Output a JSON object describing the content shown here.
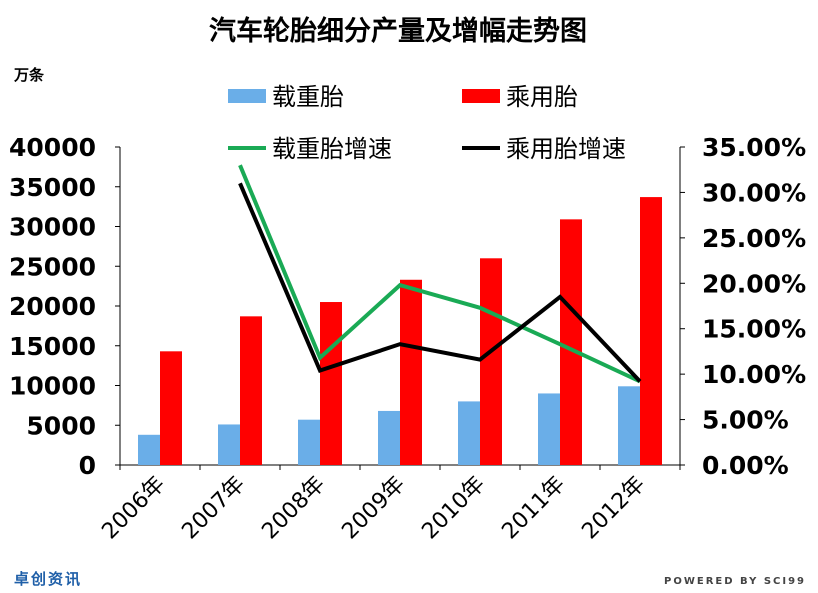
{
  "chart_data": {
    "type": "bar",
    "title": "汽车轮胎细分产量及增幅走势图",
    "ylabel_left": "万条",
    "categories": [
      "2006年",
      "2007年",
      "2008年",
      "2009年",
      "2010年",
      "2011年",
      "2012年"
    ],
    "ylim_left": [
      0,
      40000
    ],
    "ylim_right": [
      0,
      0.35
    ],
    "left_ticks": [
      "0",
      "5000",
      "10000",
      "15000",
      "20000",
      "25000",
      "30000",
      "35000",
      "40000"
    ],
    "right_ticks": [
      "0.00%",
      "5.00%",
      "10.00%",
      "15.00%",
      "20.00%",
      "25.00%",
      "30.00%",
      "35.00%"
    ],
    "series": [
      {
        "name": "载重胎",
        "kind": "bar",
        "axis": "left",
        "color": "#6aaee8",
        "values": [
          3800,
          5100,
          5700,
          6800,
          8000,
          9000,
          9900
        ]
      },
      {
        "name": "乘用胎",
        "kind": "bar",
        "axis": "left",
        "color": "#ff0000",
        "values": [
          14300,
          18700,
          20500,
          23300,
          26000,
          30900,
          33700
        ]
      },
      {
        "name": "载重胎增速",
        "kind": "line",
        "axis": "right",
        "color": "#1aaa55",
        "values": [
          null,
          0.33,
          0.118,
          0.198,
          0.173,
          0.133,
          0.092
        ]
      },
      {
        "name": "乘用胎增速",
        "kind": "line",
        "axis": "right",
        "color": "#000000",
        "values": [
          null,
          0.31,
          0.104,
          0.133,
          0.116,
          0.185,
          0.092
        ]
      }
    ],
    "legend": "top",
    "grid": false
  },
  "branding": {
    "left": "卓创资讯",
    "right": "POWERED BY SCI99"
  }
}
